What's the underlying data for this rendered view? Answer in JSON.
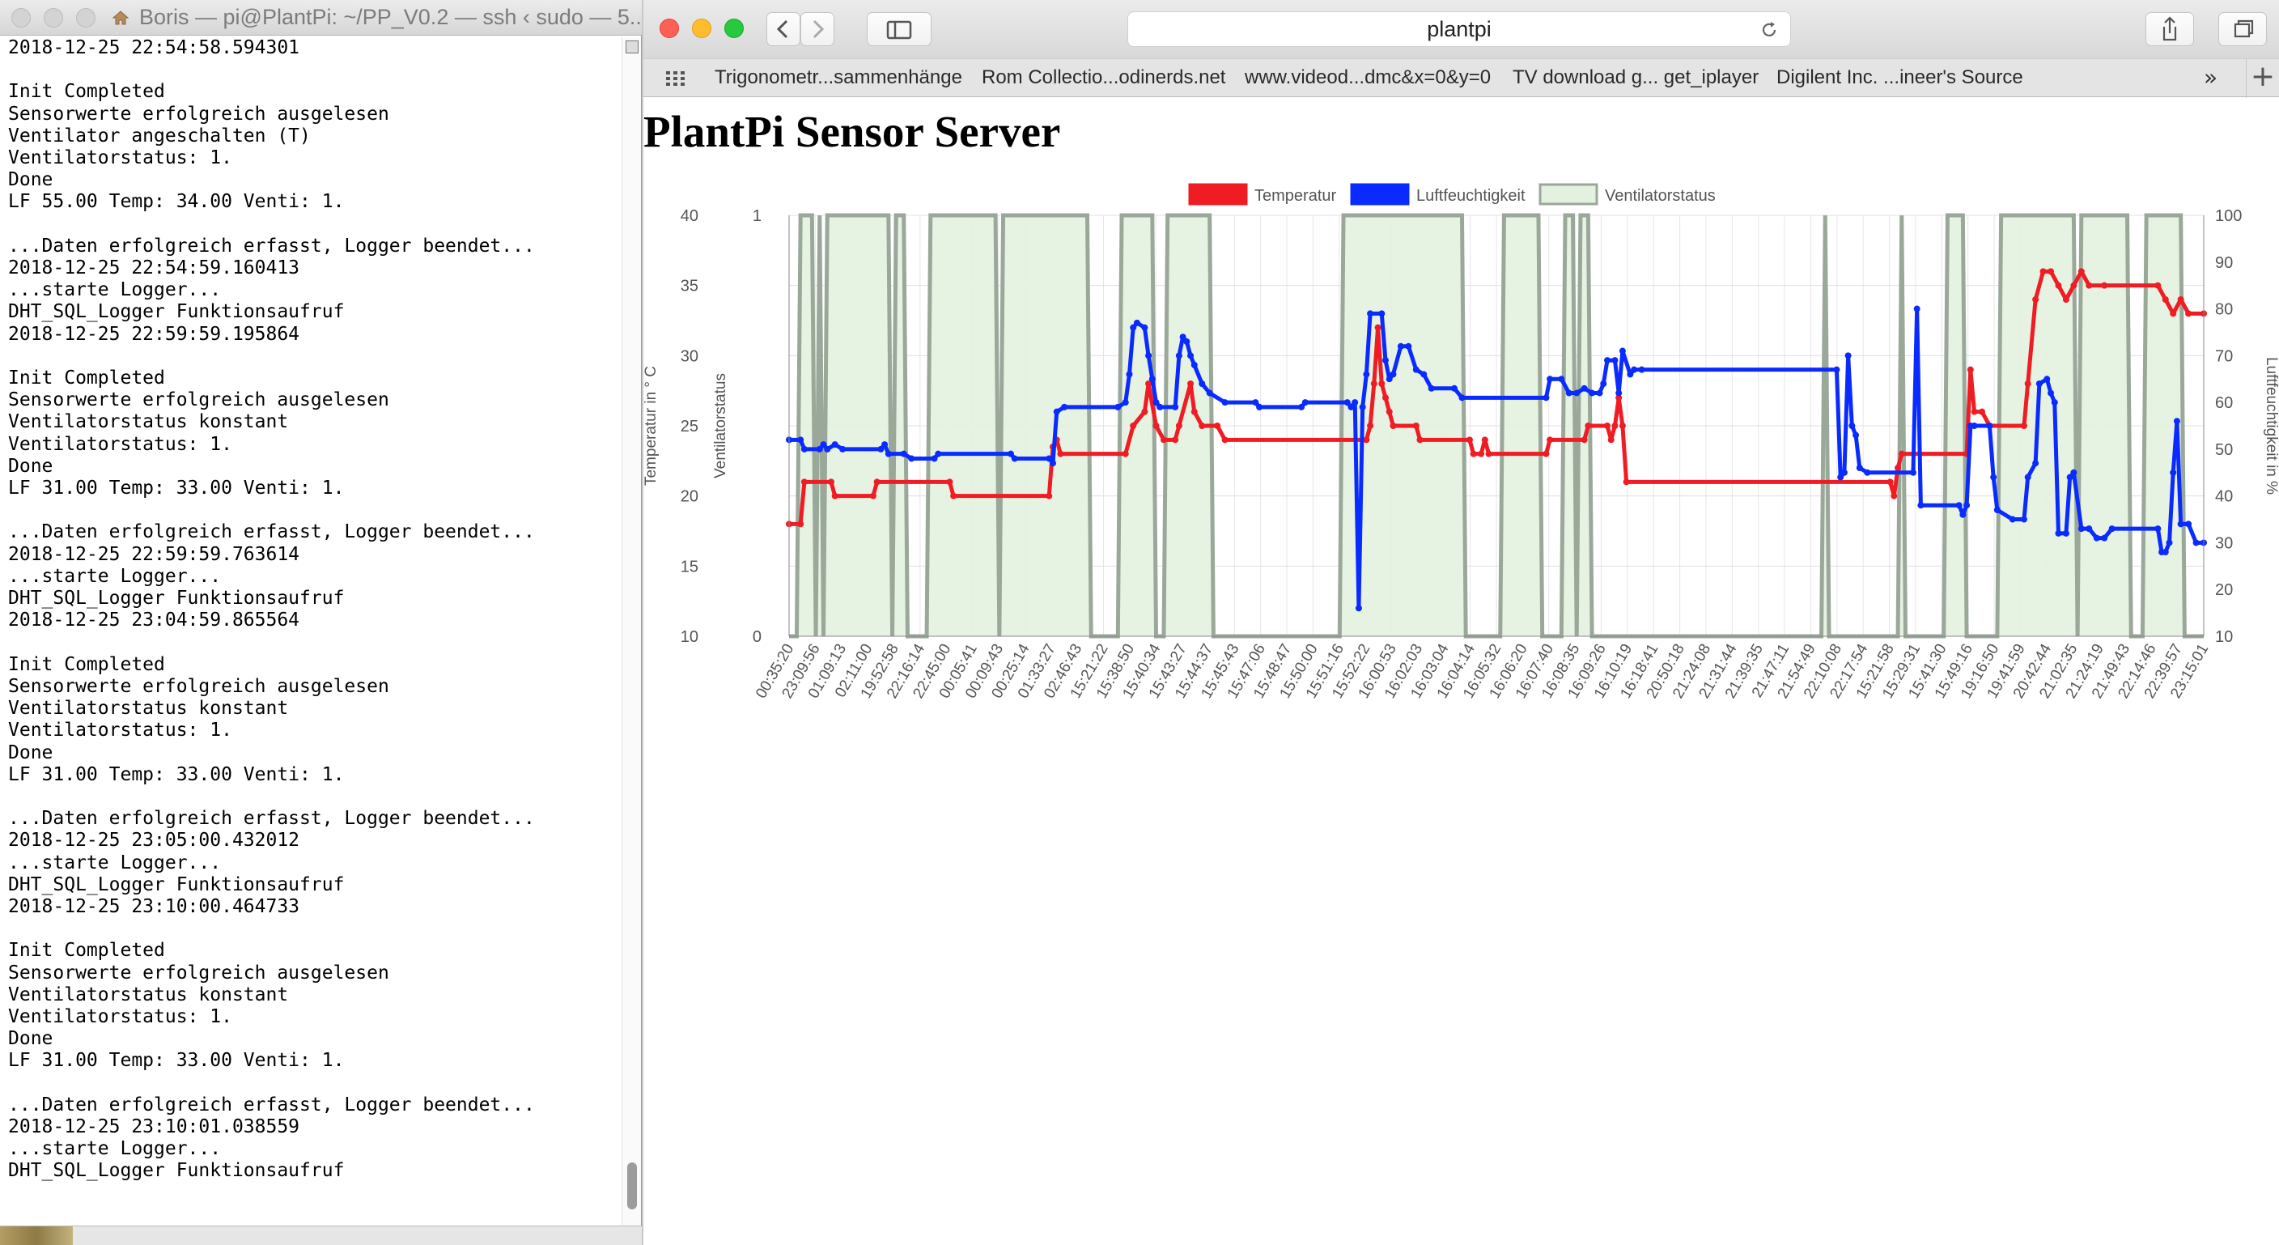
{
  "terminal": {
    "title": "Boris — pi@PlantPi: ~/PP_V0.2 — ssh ‹ sudo — 5...",
    "lines": [
      "2018-12-25 22:54:58.594301",
      "",
      "Init Completed",
      "Sensorwerte erfolgreich ausgelesen",
      "Ventilator angeschalten (T)",
      "Ventilatorstatus: 1.",
      "Done",
      "LF 55.00 Temp: 34.00 Venti: 1.",
      "",
      "...Daten erfolgreich erfasst, Logger beendet...",
      "2018-12-25 22:54:59.160413",
      "...starte Logger...",
      "DHT_SQL_Logger Funktionsaufruf",
      "2018-12-25 22:59:59.195864",
      "",
      "Init Completed",
      "Sensorwerte erfolgreich ausgelesen",
      "Ventilatorstatus konstant",
      "Ventilatorstatus: 1.",
      "Done",
      "LF 31.00 Temp: 33.00 Venti: 1.",
      "",
      "...Daten erfolgreich erfasst, Logger beendet...",
      "2018-12-25 22:59:59.763614",
      "...starte Logger...",
      "DHT_SQL_Logger Funktionsaufruf",
      "2018-12-25 23:04:59.865564",
      "",
      "Init Completed",
      "Sensorwerte erfolgreich ausgelesen",
      "Ventilatorstatus konstant",
      "Ventilatorstatus: 1.",
      "Done",
      "LF 31.00 Temp: 33.00 Venti: 1.",
      "",
      "...Daten erfolgreich erfasst, Logger beendet...",
      "2018-12-25 23:05:00.432012",
      "...starte Logger...",
      "DHT_SQL_Logger Funktionsaufruf",
      "2018-12-25 23:10:00.464733",
      "",
      "Init Completed",
      "Sensorwerte erfolgreich ausgelesen",
      "Ventilatorstatus konstant",
      "Ventilatorstatus: 1.",
      "Done",
      "LF 31.00 Temp: 33.00 Venti: 1.",
      "",
      "...Daten erfolgreich erfasst, Logger beendet...",
      "2018-12-25 23:10:01.038559",
      "...starte Logger...",
      "DHT_SQL_Logger Funktionsaufruf"
    ]
  },
  "browser": {
    "address": "plantpi",
    "bookmarks": [
      "Trigonometr...sammenhänge",
      "Rom Collectio...odinerds.net",
      "www.videod...dmc&x=0&y=0",
      "TV download g... get_iplayer",
      "Digilent Inc. ...ineer's Source"
    ],
    "overflow_label": "»",
    "new_tab_label": "+"
  },
  "page": {
    "title": "PlantPi Sensor Server"
  },
  "chart_data": {
    "type": "line",
    "legend_position": "top",
    "grid": true,
    "colors": {
      "temperature": "#f01c24",
      "humidity": "#0a2bff",
      "fan": "#9aa89a",
      "fan_fill": "#e3f1df"
    },
    "axes": {
      "temperature": {
        "label": "Temperatur in ° C",
        "range": [
          10,
          40
        ],
        "ticks": [
          "10",
          "15",
          "20",
          "25",
          "30",
          "35",
          "40"
        ]
      },
      "fan": {
        "label": "Ventilatorstatus",
        "range": [
          0,
          1
        ],
        "ticks": [
          "0",
          "1"
        ]
      },
      "humidity": {
        "label": "Luftfeuchtigkeit in %",
        "range": [
          10,
          100
        ],
        "ticks": [
          "10",
          "20",
          "30",
          "40",
          "50",
          "60",
          "70",
          "80",
          "90",
          "100"
        ]
      }
    },
    "x_tick_labels": [
      "00:35:20",
      "23:09:56",
      "01:09:13",
      "02:11:00",
      "19:52:58",
      "22:16:14",
      "22:45:00",
      "00:05:41",
      "00:09:43",
      "00:25:14",
      "01:33:27",
      "02:46:43",
      "15:21:22",
      "15:38:50",
      "15:40:34",
      "15:43:27",
      "15:44:37",
      "15:45:43",
      "15:47:06",
      "15:48:47",
      "15:50:00",
      "15:51:16",
      "15:52:22",
      "16:00:53",
      "16:02:03",
      "16:03:04",
      "16:04:14",
      "16:05:32",
      "16:06:20",
      "16:07:40",
      "16:08:35",
      "16:09:26",
      "16:10:19",
      "16:18:41",
      "20:50:18",
      "21:24:08",
      "21:31:44",
      "21:39:35",
      "21:47:11",
      "21:54:49",
      "22:10:08",
      "22:17:54",
      "15:21:58",
      "15:29:31",
      "15:41:30",
      "15:49:16",
      "19:16:50",
      "19:41:59",
      "20:42:44",
      "21:02:35",
      "21:24:19",
      "21:49:43",
      "22:14:46",
      "22:39:57",
      "23:15:01"
    ],
    "series": [
      {
        "name": "Temperatur",
        "axis": "temperature",
        "values": [
          [
            0,
            18
          ],
          [
            1.5,
            18
          ],
          [
            2,
            21
          ],
          [
            5.5,
            21
          ],
          [
            6,
            20
          ],
          [
            11,
            20
          ],
          [
            11.5,
            21
          ],
          [
            21,
            21
          ],
          [
            21.5,
            20
          ],
          [
            34,
            20
          ],
          [
            34.5,
            23.5
          ],
          [
            35,
            24
          ],
          [
            35.5,
            23
          ],
          [
            44,
            23
          ],
          [
            45,
            25
          ],
          [
            46.5,
            26
          ],
          [
            47,
            28
          ],
          [
            48,
            25
          ],
          [
            49,
            24
          ],
          [
            50.5,
            24
          ],
          [
            51,
            25
          ],
          [
            52.5,
            28
          ],
          [
            53,
            26
          ],
          [
            54,
            25
          ],
          [
            56,
            25
          ],
          [
            57,
            24
          ],
          [
            75.5,
            24
          ],
          [
            76,
            25
          ],
          [
            76.5,
            28
          ],
          [
            77,
            32
          ],
          [
            77.5,
            28
          ],
          [
            78,
            27
          ],
          [
            78.5,
            26
          ],
          [
            79,
            25
          ],
          [
            82,
            25
          ],
          [
            82.5,
            24
          ],
          [
            89,
            24
          ],
          [
            89.5,
            23
          ],
          [
            90.5,
            23
          ],
          [
            91,
            24
          ],
          [
            91.5,
            23
          ],
          [
            99,
            23
          ],
          [
            99.5,
            24
          ],
          [
            104,
            24
          ],
          [
            104.5,
            25
          ],
          [
            107,
            25
          ],
          [
            107.5,
            24
          ],
          [
            108,
            25
          ],
          [
            108.5,
            27
          ],
          [
            109,
            25
          ],
          [
            109.5,
            21
          ],
          [
            144,
            21
          ],
          [
            144.5,
            20
          ],
          [
            145,
            22
          ],
          [
            145.5,
            23
          ],
          [
            154,
            23
          ],
          [
            154.5,
            29
          ],
          [
            155,
            26
          ],
          [
            156,
            26
          ],
          [
            157,
            25
          ],
          [
            161.5,
            25
          ],
          [
            162,
            28
          ],
          [
            163,
            34
          ],
          [
            164,
            36
          ],
          [
            165,
            36
          ],
          [
            166,
            35
          ],
          [
            167,
            34
          ],
          [
            168,
            35
          ],
          [
            169,
            36
          ],
          [
            170,
            35
          ],
          [
            172,
            35
          ],
          [
            179,
            35
          ],
          [
            180,
            34
          ],
          [
            181,
            33
          ],
          [
            182,
            34
          ],
          [
            183,
            33
          ],
          [
            185,
            33
          ]
        ]
      },
      {
        "name": "Luftfeuchtigkeit",
        "axis": "humidity",
        "values": [
          [
            0,
            52
          ],
          [
            1.5,
            52
          ],
          [
            2,
            50
          ],
          [
            4,
            50
          ],
          [
            4.5,
            51
          ],
          [
            5,
            50
          ],
          [
            6,
            51
          ],
          [
            7,
            50
          ],
          [
            12,
            50
          ],
          [
            12.5,
            51
          ],
          [
            13,
            49
          ],
          [
            15,
            49
          ],
          [
            16,
            48
          ],
          [
            19,
            48
          ],
          [
            19.5,
            49
          ],
          [
            29,
            49
          ],
          [
            29.5,
            48
          ],
          [
            34,
            48
          ],
          [
            34.5,
            47
          ],
          [
            35,
            58
          ],
          [
            36,
            59
          ],
          [
            43,
            59
          ],
          [
            44,
            60
          ],
          [
            44.5,
            66
          ],
          [
            45,
            76
          ],
          [
            45.5,
            77
          ],
          [
            46.5,
            76
          ],
          [
            47,
            70
          ],
          [
            47.5,
            65
          ],
          [
            48,
            60
          ],
          [
            48.5,
            59
          ],
          [
            50.5,
            59
          ],
          [
            51,
            70
          ],
          [
            51.5,
            74
          ],
          [
            52,
            73
          ],
          [
            52.5,
            70
          ],
          [
            53,
            68
          ],
          [
            54,
            64
          ],
          [
            55,
            62
          ],
          [
            57,
            60
          ],
          [
            61,
            60
          ],
          [
            61.5,
            59
          ],
          [
            67,
            59
          ],
          [
            67.5,
            60
          ],
          [
            73,
            60
          ],
          [
            73.5,
            59
          ],
          [
            74,
            60
          ],
          [
            74.5,
            16
          ],
          [
            75,
            59
          ],
          [
            75.5,
            66
          ],
          [
            76,
            79
          ],
          [
            77.5,
            79
          ],
          [
            78,
            69
          ],
          [
            78.5,
            65
          ],
          [
            79,
            66
          ],
          [
            80,
            72
          ],
          [
            81,
            72
          ],
          [
            82,
            67
          ],
          [
            83,
            66
          ],
          [
            84,
            63
          ],
          [
            87,
            63
          ],
          [
            88,
            61
          ],
          [
            99,
            61
          ],
          [
            99.5,
            65
          ],
          [
            101,
            65
          ],
          [
            102,
            62
          ],
          [
            103,
            62
          ],
          [
            104,
            63
          ],
          [
            105,
            62
          ],
          [
            106,
            62
          ],
          [
            106.5,
            64
          ],
          [
            107,
            69
          ],
          [
            108,
            69
          ],
          [
            108.5,
            62
          ],
          [
            109,
            71
          ],
          [
            110,
            66
          ],
          [
            110.5,
            67
          ],
          [
            111.5,
            67
          ],
          [
            137,
            67
          ],
          [
            137.5,
            44
          ],
          [
            138,
            45
          ],
          [
            138.5,
            70
          ],
          [
            139,
            55
          ],
          [
            139.5,
            53
          ],
          [
            140,
            46
          ],
          [
            141,
            45
          ],
          [
            147,
            45
          ],
          [
            147.5,
            80
          ],
          [
            148,
            38
          ],
          [
            153,
            38
          ],
          [
            153.5,
            36
          ],
          [
            154,
            38
          ],
          [
            154.5,
            55
          ],
          [
            155,
            55
          ],
          [
            157,
            55
          ],
          [
            157.5,
            44
          ],
          [
            158,
            37
          ],
          [
            160,
            35
          ],
          [
            161.5,
            35
          ],
          [
            162,
            44
          ],
          [
            163,
            47
          ],
          [
            163.5,
            64
          ],
          [
            164.5,
            65
          ],
          [
            165,
            62
          ],
          [
            165.5,
            60
          ],
          [
            166,
            32
          ],
          [
            167,
            32
          ],
          [
            167.5,
            44
          ],
          [
            168,
            45
          ],
          [
            169,
            33
          ],
          [
            170,
            33
          ],
          [
            171,
            31
          ],
          [
            172,
            31
          ],
          [
            173,
            33
          ],
          [
            179,
            33
          ],
          [
            179.5,
            28
          ],
          [
            180,
            28
          ],
          [
            180.5,
            30
          ],
          [
            181,
            45
          ],
          [
            181.5,
            56
          ],
          [
            182,
            34
          ],
          [
            183,
            34
          ],
          [
            184,
            30
          ],
          [
            185,
            30
          ]
        ]
      },
      {
        "name": "Ventilatorstatus",
        "axis": "fan",
        "values": [
          [
            0,
            0
          ],
          [
            1,
            0
          ],
          [
            1.5,
            1
          ],
          [
            3,
            1
          ],
          [
            3.5,
            0
          ],
          [
            4,
            1
          ],
          [
            4.5,
            0
          ],
          [
            5,
            1
          ],
          [
            13,
            1
          ],
          [
            13.5,
            0
          ],
          [
            14,
            1
          ],
          [
            15,
            1
          ],
          [
            15.5,
            0
          ],
          [
            18,
            0
          ],
          [
            18.5,
            1
          ],
          [
            27,
            1
          ],
          [
            27.5,
            0
          ],
          [
            28,
            1
          ],
          [
            39,
            1
          ],
          [
            39.5,
            0
          ],
          [
            43,
            0
          ],
          [
            43.5,
            1
          ],
          [
            47.5,
            1
          ],
          [
            48,
            0
          ],
          [
            49,
            0
          ],
          [
            49.5,
            1
          ],
          [
            55,
            1
          ],
          [
            55.5,
            0
          ],
          [
            72,
            0
          ],
          [
            72.5,
            1
          ],
          [
            88,
            1
          ],
          [
            88.5,
            0
          ],
          [
            93,
            0
          ],
          [
            93.5,
            1
          ],
          [
            98,
            1
          ],
          [
            98.5,
            0
          ],
          [
            101,
            0
          ],
          [
            101.5,
            1
          ],
          [
            102.5,
            1
          ],
          [
            103,
            0
          ],
          [
            103.5,
            1
          ],
          [
            104.5,
            1
          ],
          [
            105,
            0
          ],
          [
            135,
            0
          ],
          [
            135.5,
            1
          ],
          [
            136,
            0
          ],
          [
            145,
            0
          ],
          [
            145.5,
            1
          ],
          [
            146,
            0
          ],
          [
            151,
            0
          ],
          [
            151.5,
            1
          ],
          [
            153.5,
            1
          ],
          [
            154,
            0
          ],
          [
            158,
            0
          ],
          [
            158.5,
            1
          ],
          [
            168,
            1
          ],
          [
            168.5,
            0
          ],
          [
            169,
            1
          ],
          [
            175,
            1
          ],
          [
            175.5,
            0
          ],
          [
            177,
            0
          ],
          [
            177.5,
            1
          ],
          [
            182,
            1
          ],
          [
            182.5,
            0
          ],
          [
            185,
            0
          ]
        ]
      }
    ]
  }
}
